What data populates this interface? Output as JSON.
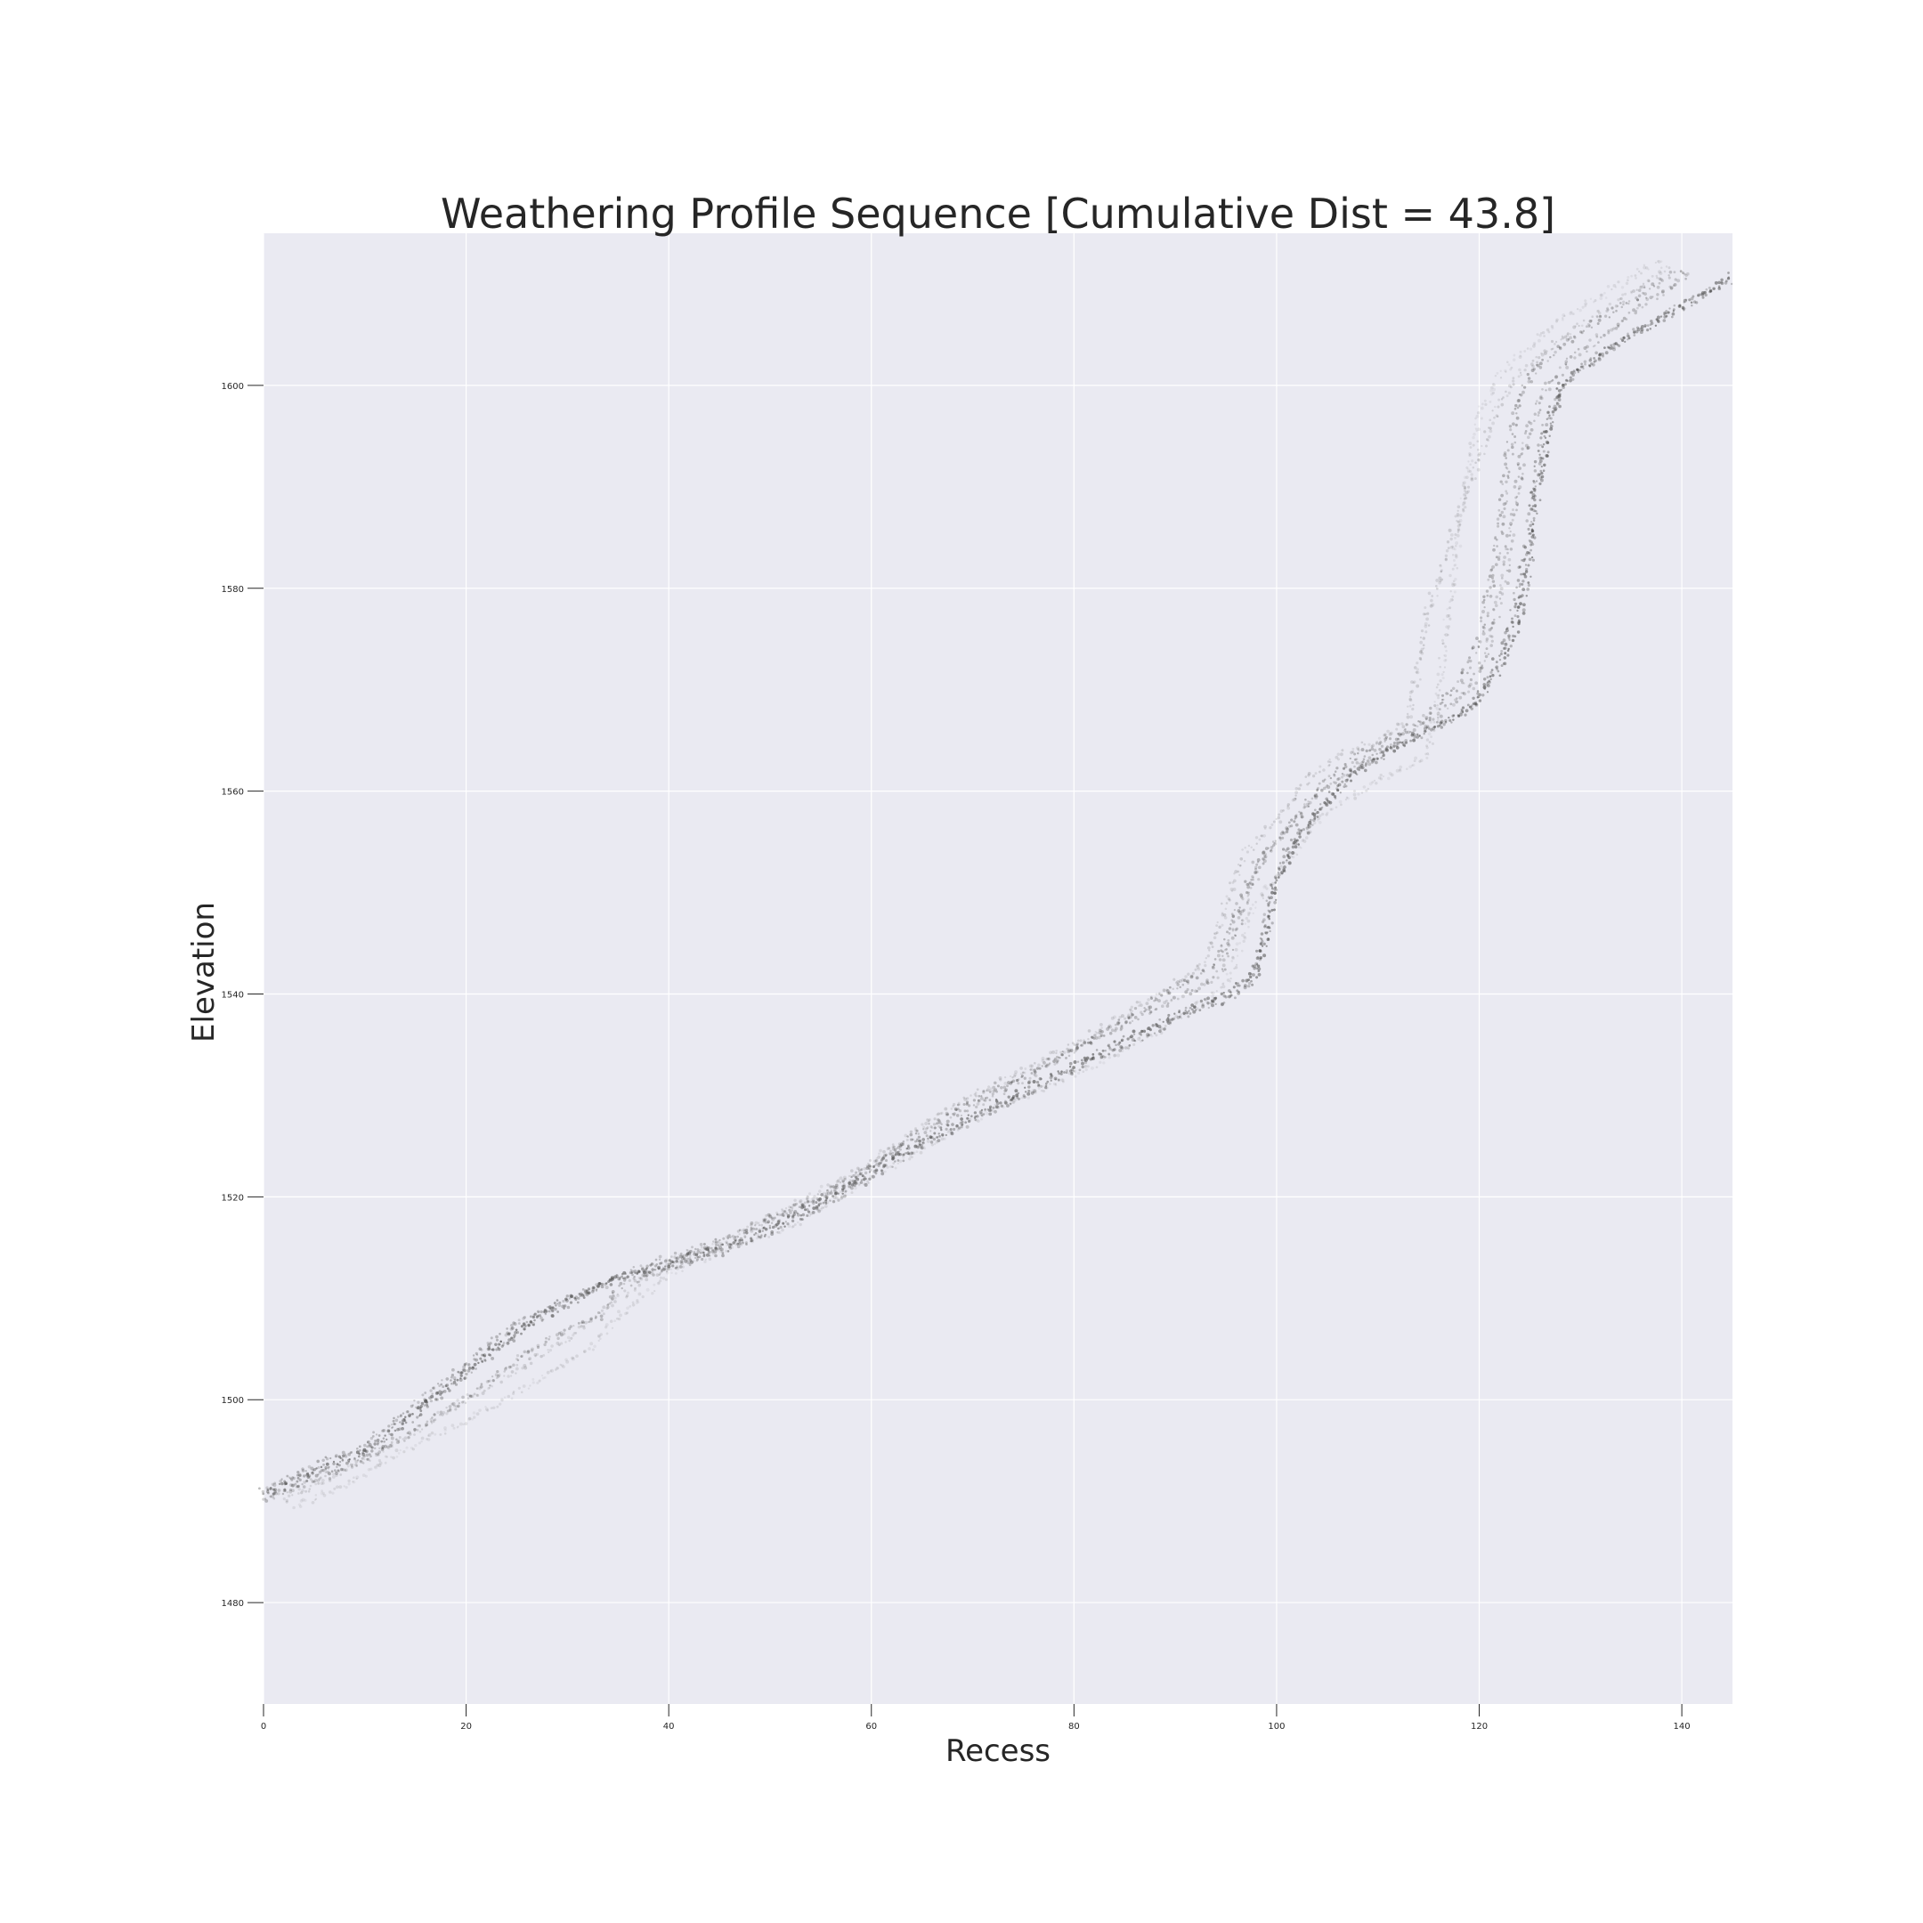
{
  "chart_data": {
    "type": "scatter",
    "title": "Weathering Profile Sequence [Cumulative Dist = 43.8]",
    "xlabel": "Recess",
    "ylabel": "Elevation",
    "xlim": [
      0,
      145
    ],
    "ylim": [
      1470,
      1615
    ],
    "xticks": [
      "0",
      "20",
      "40",
      "60",
      "80",
      "100",
      "120",
      "140"
    ],
    "yticks": [
      "1480",
      "1500",
      "1520",
      "1540",
      "1560",
      "1580",
      "1600"
    ],
    "grid": true,
    "legend": "none",
    "colors": {
      "background": "#eaeaf2",
      "grid": "#ffffff",
      "marker": "#555555"
    },
    "series": [
      {
        "opacity": 0.55,
        "values": [
          [
            0,
            1491
          ],
          [
            5,
            1493
          ],
          [
            10,
            1495
          ],
          [
            15,
            1499
          ],
          [
            20,
            1503
          ],
          [
            25,
            1507
          ],
          [
            30,
            1510
          ],
          [
            35,
            1512
          ],
          [
            40,
            1513.5
          ],
          [
            45,
            1515
          ],
          [
            50,
            1517
          ],
          [
            55,
            1519.5
          ],
          [
            60,
            1522.5
          ],
          [
            65,
            1525.5
          ],
          [
            70,
            1528
          ],
          [
            75,
            1530.5
          ],
          [
            80,
            1533
          ],
          [
            85,
            1535.5
          ],
          [
            90,
            1538
          ],
          [
            95,
            1540
          ],
          [
            98,
            1542
          ],
          [
            99,
            1546
          ],
          [
            100,
            1551
          ],
          [
            102,
            1555
          ],
          [
            105,
            1559
          ],
          [
            108,
            1562
          ],
          [
            112,
            1564.5
          ],
          [
            116,
            1566.5
          ],
          [
            120,
            1569
          ],
          [
            122,
            1572
          ],
          [
            124,
            1577
          ],
          [
            125,
            1583
          ],
          [
            126,
            1591
          ],
          [
            127,
            1597
          ],
          [
            129,
            1601
          ],
          [
            132,
            1603
          ],
          [
            136,
            1605.5
          ],
          [
            140,
            1607.5
          ],
          [
            145,
            1611
          ]
        ]
      },
      {
        "opacity": 0.45,
        "values": [
          [
            0,
            1490.5
          ],
          [
            5,
            1492.5
          ],
          [
            10,
            1494.5
          ],
          [
            15,
            1498.5
          ],
          [
            20,
            1502.5
          ],
          [
            25,
            1506.5
          ],
          [
            30,
            1509.5
          ],
          [
            35,
            1512
          ],
          [
            40,
            1513
          ],
          [
            45,
            1514.5
          ],
          [
            50,
            1516.5
          ],
          [
            55,
            1519
          ],
          [
            60,
            1522
          ],
          [
            65,
            1525
          ],
          [
            70,
            1527.5
          ],
          [
            75,
            1530
          ],
          [
            80,
            1532.5
          ],
          [
            85,
            1535
          ],
          [
            90,
            1537.5
          ],
          [
            95,
            1539.5
          ],
          [
            97.5,
            1541
          ],
          [
            98.5,
            1545
          ],
          [
            99.5,
            1550
          ],
          [
            101,
            1554
          ],
          [
            104,
            1558
          ],
          [
            107,
            1561.5
          ],
          [
            111,
            1564
          ],
          [
            115,
            1566
          ],
          [
            119,
            1568
          ],
          [
            121,
            1571
          ],
          [
            123,
            1576
          ],
          [
            124.5,
            1583
          ],
          [
            125.5,
            1590
          ],
          [
            126.5,
            1596
          ],
          [
            128,
            1600
          ],
          [
            131,
            1602.5
          ],
          [
            135,
            1605
          ],
          [
            140,
            1608
          ],
          [
            145,
            1610.5
          ]
        ]
      },
      {
        "opacity": 0.35,
        "values": [
          [
            0,
            1491
          ],
          [
            5,
            1493.5
          ],
          [
            10,
            1495.5
          ],
          [
            15,
            1499.5
          ],
          [
            20,
            1503.5
          ],
          [
            25,
            1507.5
          ],
          [
            28,
            1509
          ],
          [
            32,
            1510.5
          ],
          [
            36,
            1512.5
          ],
          [
            40,
            1514
          ],
          [
            45,
            1515.5
          ],
          [
            50,
            1518
          ],
          [
            55,
            1520
          ],
          [
            60,
            1523
          ],
          [
            65,
            1526.5
          ],
          [
            70,
            1529.5
          ],
          [
            75,
            1532
          ],
          [
            80,
            1534.5
          ],
          [
            85,
            1537.5
          ],
          [
            90,
            1540.5
          ],
          [
            94,
            1543
          ],
          [
            96,
            1548
          ],
          [
            98,
            1553
          ],
          [
            101,
            1556
          ],
          [
            104,
            1560
          ],
          [
            107,
            1563
          ],
          [
            111,
            1565
          ],
          [
            115,
            1567.5
          ],
          [
            118,
            1570.5
          ],
          [
            120,
            1575
          ],
          [
            121.5,
            1582
          ],
          [
            122.5,
            1590
          ],
          [
            123.5,
            1597
          ],
          [
            125,
            1601
          ],
          [
            128,
            1604
          ],
          [
            132,
            1606.5
          ],
          [
            136,
            1609
          ],
          [
            140,
            1611.5
          ]
        ]
      },
      {
        "opacity": 0.3,
        "values": [
          [
            0,
            1490
          ],
          [
            5,
            1492
          ],
          [
            10,
            1494
          ],
          [
            15,
            1497
          ],
          [
            20,
            1500
          ],
          [
            25,
            1504
          ],
          [
            30,
            1507
          ],
          [
            33,
            1508
          ],
          [
            35,
            1511
          ],
          [
            40,
            1513
          ],
          [
            45,
            1515
          ],
          [
            50,
            1517.5
          ],
          [
            55,
            1520
          ],
          [
            60,
            1523
          ],
          [
            65,
            1526
          ],
          [
            70,
            1529
          ],
          [
            75,
            1531.5
          ],
          [
            80,
            1534.5
          ],
          [
            85,
            1537
          ],
          [
            90,
            1539.5
          ],
          [
            94,
            1541.5
          ],
          [
            96,
            1546
          ],
          [
            98,
            1552
          ],
          [
            100,
            1555
          ],
          [
            103,
            1559
          ],
          [
            107,
            1562
          ],
          [
            111,
            1564.5
          ],
          [
            115,
            1567
          ],
          [
            119,
            1570
          ],
          [
            121,
            1574
          ],
          [
            122.5,
            1581
          ],
          [
            123.5,
            1588
          ],
          [
            124.5,
            1594
          ],
          [
            126,
            1599
          ],
          [
            129,
            1602.5
          ],
          [
            133,
            1605.5
          ],
          [
            137,
            1608.5
          ],
          [
            141,
            1611
          ]
        ]
      },
      {
        "opacity": 0.18,
        "values": [
          [
            2,
            1490
          ],
          [
            6,
            1492
          ],
          [
            10,
            1494
          ],
          [
            15,
            1497
          ],
          [
            20,
            1500
          ],
          [
            25,
            1503
          ],
          [
            30,
            1506
          ],
          [
            35,
            1510
          ],
          [
            40,
            1513.5
          ],
          [
            45,
            1515.5
          ],
          [
            50,
            1518
          ],
          [
            55,
            1520.5
          ],
          [
            60,
            1523.5
          ],
          [
            65,
            1527
          ],
          [
            70,
            1530
          ],
          [
            75,
            1532.5
          ],
          [
            80,
            1535
          ],
          [
            85,
            1538
          ],
          [
            90,
            1541
          ],
          [
            93,
            1543
          ],
          [
            95,
            1549
          ],
          [
            97,
            1554
          ],
          [
            100,
            1557
          ],
          [
            103,
            1561
          ],
          [
            106,
            1563.5
          ],
          [
            110,
            1565
          ],
          [
            113,
            1567
          ],
          [
            114,
            1572
          ],
          [
            115,
            1578
          ],
          [
            117,
            1584
          ],
          [
            119,
            1590
          ],
          [
            121,
            1596
          ],
          [
            123,
            1600
          ],
          [
            126,
            1603
          ],
          [
            130,
            1606
          ],
          [
            135,
            1609
          ],
          [
            139,
            1612
          ]
        ]
      },
      {
        "opacity": 0.12,
        "values": [
          [
            3,
            1489.5
          ],
          [
            8,
            1491.5
          ],
          [
            12,
            1494
          ],
          [
            17,
            1496.5
          ],
          [
            22,
            1499
          ],
          [
            27,
            1502
          ],
          [
            32,
            1505
          ],
          [
            36,
            1509
          ],
          [
            40,
            1512.5
          ],
          [
            46,
            1515
          ],
          [
            52,
            1517
          ],
          [
            56,
            1519.5
          ],
          [
            62,
            1523
          ],
          [
            68,
            1526.5
          ],
          [
            74,
            1529.5
          ],
          [
            80,
            1532
          ],
          [
            86,
            1535
          ],
          [
            91,
            1538
          ],
          [
            95,
            1541
          ],
          [
            98,
            1549
          ],
          [
            101,
            1553
          ],
          [
            104,
            1557
          ],
          [
            108,
            1560
          ],
          [
            112,
            1562
          ],
          [
            115,
            1563.5
          ],
          [
            116,
            1570
          ],
          [
            117,
            1578
          ],
          [
            118,
            1586
          ],
          [
            119,
            1592
          ],
          [
            120,
            1597
          ],
          [
            122,
            1601
          ],
          [
            125,
            1604
          ],
          [
            129,
            1607
          ],
          [
            134,
            1610
          ],
          [
            138,
            1612.5
          ]
        ]
      }
    ]
  }
}
